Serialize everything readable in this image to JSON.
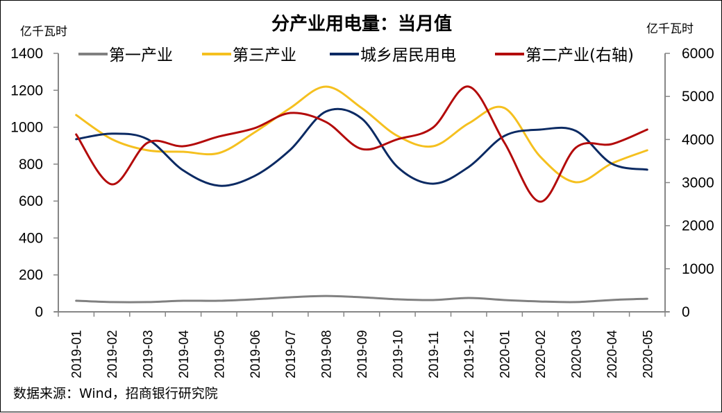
{
  "chart_data": {
    "type": "line",
    "title": "分产业用电量：当月值",
    "ylabel_left": "亿千瓦时",
    "ylabel_right": "亿千瓦时",
    "xlabel": "",
    "ylim_left": [
      0,
      1400
    ],
    "ylim_right": [
      0,
      6000
    ],
    "yticks_left": [
      "0",
      "200",
      "400",
      "600",
      "800",
      "1000",
      "1200",
      "1400"
    ],
    "yticks_right": [
      "0",
      "1000",
      "2000",
      "3000",
      "4000",
      "5000",
      "6000"
    ],
    "grid": false,
    "legend_position": "top",
    "categories": [
      "2019-01",
      "2019-02",
      "2019-03",
      "2019-04",
      "2019-05",
      "2019-06",
      "2019-07",
      "2019-08",
      "2019-09",
      "2019-10",
      "2019-11",
      "2019-12",
      "2020-01",
      "2020-02",
      "2020-03",
      "2020-04",
      "2020-05"
    ],
    "series": [
      {
        "name": "第一产业",
        "axis": "left",
        "color": "#808080",
        "values": [
          60,
          53,
          53,
          60,
          60,
          68,
          79,
          86,
          79,
          68,
          64,
          75,
          64,
          56,
          53,
          64,
          71
        ]
      },
      {
        "name": "第三产业",
        "axis": "left",
        "color": "#F5C01F",
        "values": [
          1066,
          935,
          875,
          867,
          860,
          972,
          1104,
          1220,
          1104,
          953,
          897,
          1021,
          1104,
          841,
          702,
          803,
          875
        ]
      },
      {
        "name": "城乡居民用电",
        "axis": "left",
        "color": "#0B2A63",
        "values": [
          935,
          965,
          935,
          766,
          683,
          736,
          878,
          1085,
          1047,
          785,
          694,
          785,
          953,
          987,
          980,
          803,
          770
        ]
      },
      {
        "name": "第二产业(右轴)",
        "axis": "right",
        "color": "#B30A0A",
        "values": [
          4118,
          2960,
          3925,
          3844,
          4070,
          4263,
          4616,
          4407,
          3780,
          4005,
          4279,
          5228,
          3925,
          2557,
          3812,
          3893,
          4231
        ]
      }
    ],
    "source": "数据来源：Wind，招商银行研究院"
  }
}
